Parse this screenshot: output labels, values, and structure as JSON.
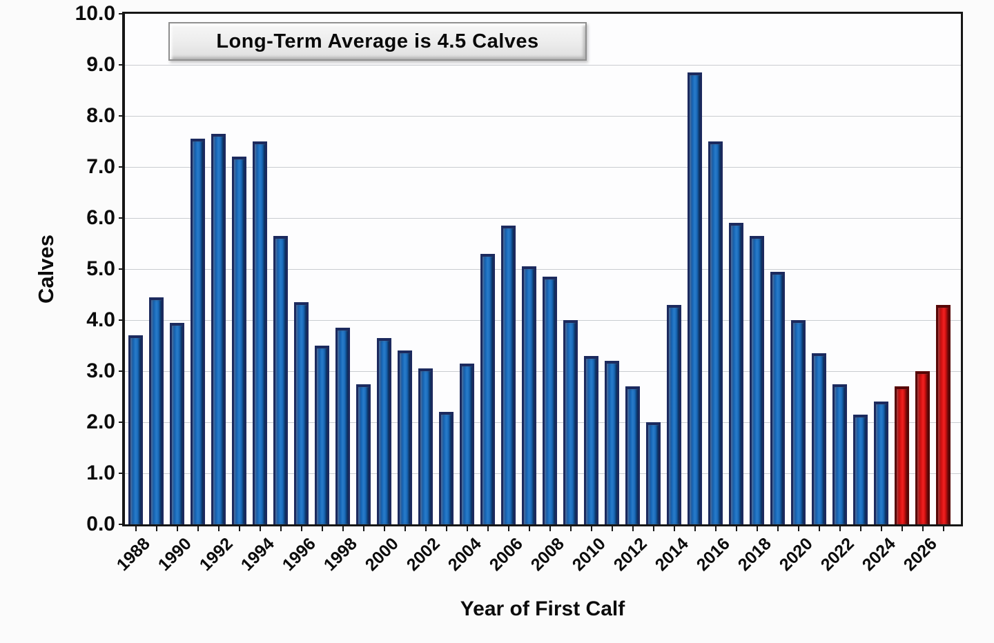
{
  "annotation_box": {
    "label": "Long-Term Average is 4.5 Calves"
  },
  "colors": {
    "bar_blue": "#1a6dbe",
    "bar_blue_border": "#1c2a5e",
    "bar_red": "#df1414",
    "bar_red_border": "#570707",
    "gridline": "#c9ccd0",
    "axis": "#161616",
    "annotation_box_bg": "#ececec",
    "background": "#fbfbfb"
  },
  "chart_data": {
    "type": "bar",
    "title": "",
    "annotation": "Long-Term Average is 4.5 Calves",
    "xlabel": "Year of First Calf",
    "ylabel": "Calves",
    "ylim": [
      0,
      10
    ],
    "grid": "horizontal",
    "legend": "none",
    "x": [
      1988,
      1989,
      1990,
      1991,
      1992,
      1993,
      1994,
      1995,
      1996,
      1997,
      1998,
      1999,
      2000,
      2001,
      2002,
      2003,
      2004,
      2005,
      2006,
      2007,
      2008,
      2009,
      2010,
      2011,
      2012,
      2013,
      2014,
      2015,
      2016,
      2017,
      2018,
      2019,
      2020,
      2021,
      2022,
      2023,
      2024,
      2025,
      2026,
      2027
    ],
    "values": [
      3.7,
      4.45,
      3.95,
      7.55,
      7.65,
      7.2,
      7.5,
      5.65,
      4.35,
      3.5,
      3.85,
      2.75,
      3.65,
      3.4,
      3.05,
      2.2,
      3.15,
      5.3,
      5.85,
      5.05,
      4.85,
      4.0,
      3.3,
      3.2,
      2.7,
      2.0,
      4.3,
      8.85,
      7.5,
      5.9,
      5.65,
      4.95,
      4.0,
      3.35,
      2.75,
      2.15,
      2.4,
      2.7,
      3.0,
      4.3
    ],
    "highlight_years": [
      2025,
      2026,
      2027
    ],
    "highlight_meaning": "most recent years shown in red",
    "y_tick_labels": [
      "0.0",
      "1.0",
      "2.0",
      "3.0",
      "4.0",
      "5.0",
      "6.0",
      "7.0",
      "8.0",
      "9.0",
      "10.0"
    ],
    "x_tick_labels": [
      "1988",
      "1990",
      "1992",
      "1994",
      "1996",
      "1998",
      "2000",
      "2002",
      "2004",
      "2006",
      "2008",
      "2010",
      "2012",
      "2014",
      "2016",
      "2018",
      "2020",
      "2022",
      "2024",
      "2026"
    ]
  }
}
